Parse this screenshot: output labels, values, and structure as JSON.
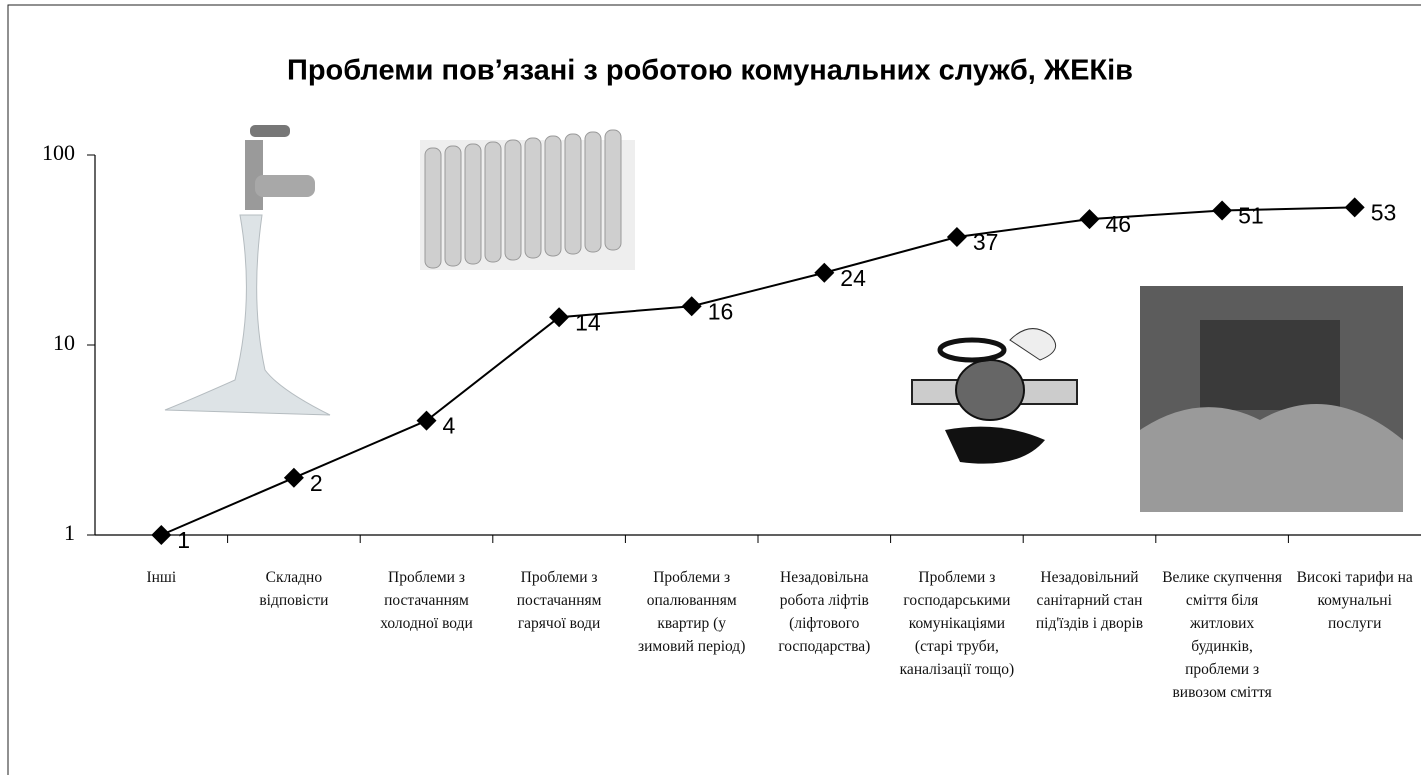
{
  "chart_data": {
    "type": "line",
    "title": "Проблеми пов’язані з роботою комунальних служб, ЖЕКів",
    "categories": [
      "Інші",
      "Складно відповісти",
      "Проблеми з постачанням холодної води",
      "Проблеми з постачанням гарячої води",
      "Проблеми з опалюванням квартир (у зимовий період)",
      "Незадовільна робота ліфтів (ліфтового господарства)",
      "Проблеми з господарськими комунікаціями (старі труби, каналізації тощо)",
      "Незадовільний санітарний стан під'їздів і дворів",
      "Велике скупчення сміття біля житлових будинків, проблеми з вивозом сміття",
      "Високі тарифи на комунальні послуги"
    ],
    "values": [
      1,
      2,
      4,
      14,
      16,
      24,
      37,
      46,
      51,
      53
    ],
    "color": "#000000",
    "log_scale": true,
    "ylim": [
      1,
      100
    ],
    "yticks": [
      1,
      10,
      100
    ]
  }
}
